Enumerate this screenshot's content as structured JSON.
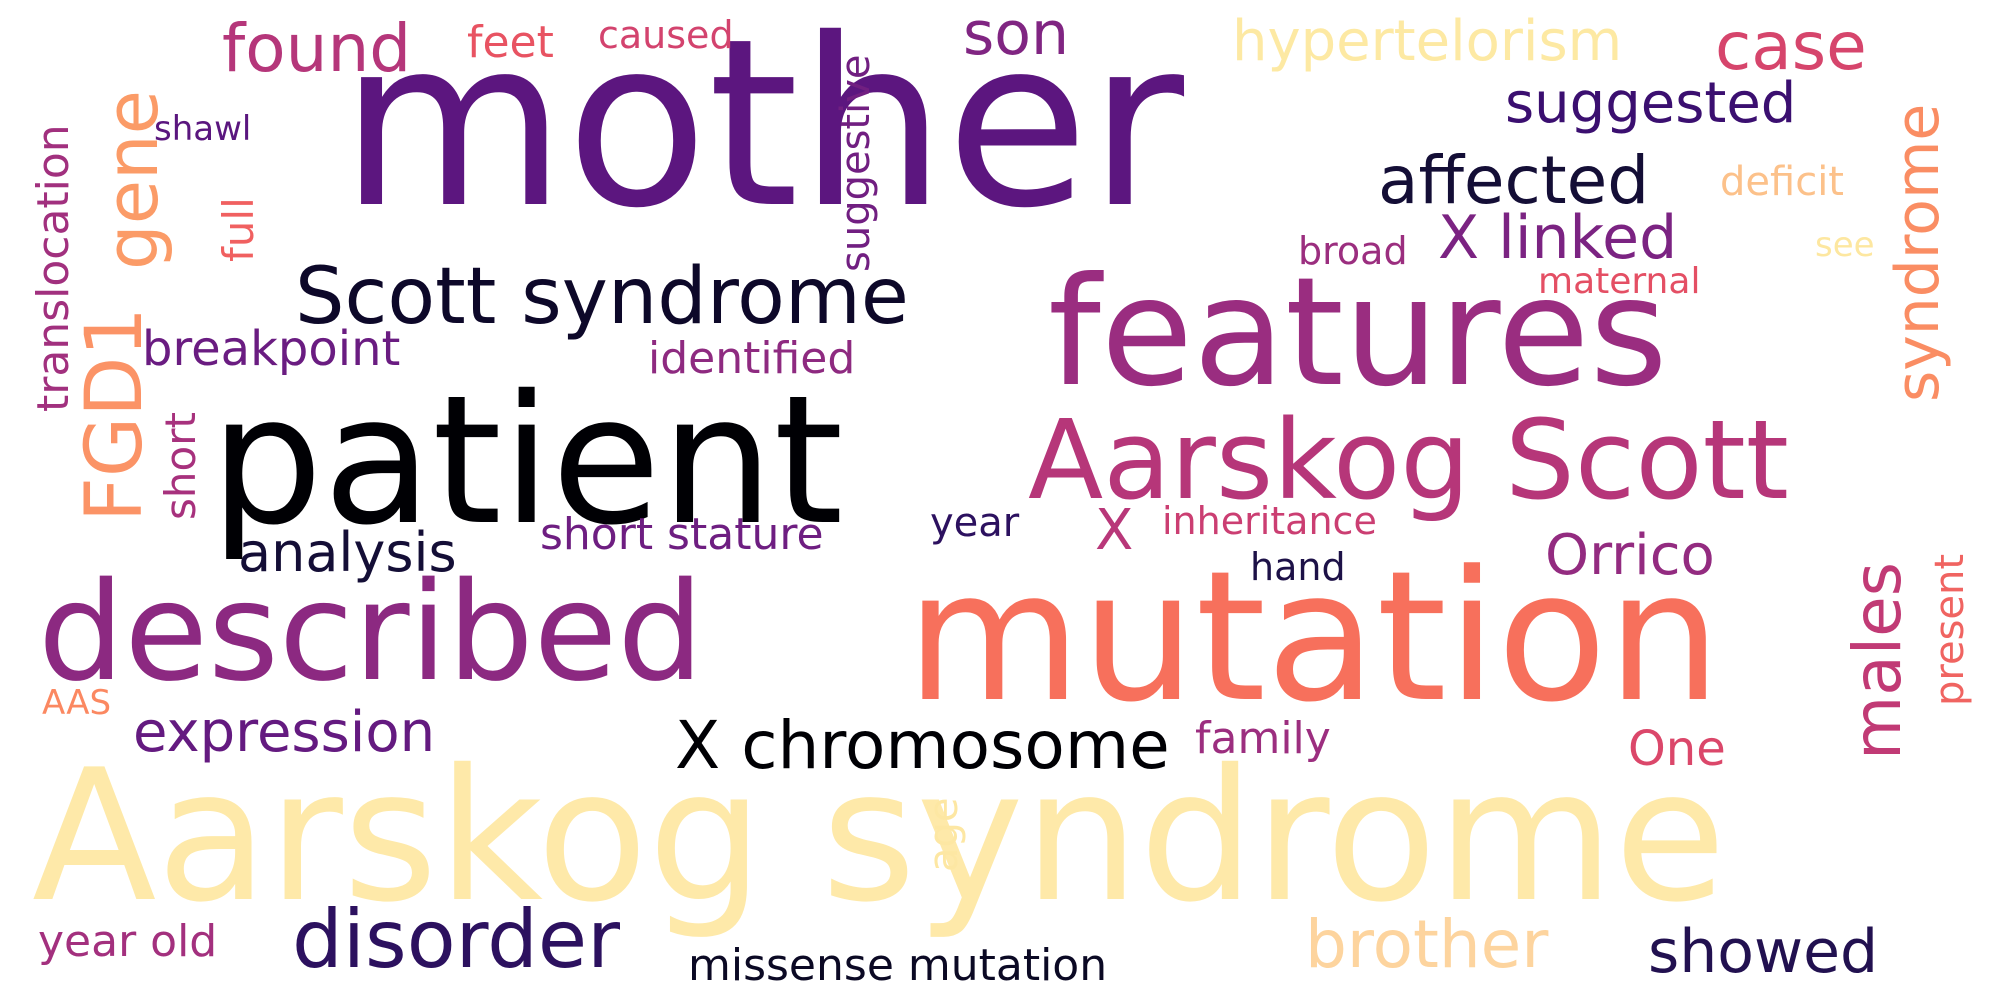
{
  "words": {
    "mother": {
      "text": "mother",
      "color": "#5c167f"
    },
    "features": {
      "text": "features",
      "color": "#9a2d80"
    },
    "patient": {
      "text": "patient",
      "color": "#000004"
    },
    "aarskog_scott": {
      "text": "Aarskog Scott",
      "color": "#b63679"
    },
    "described": {
      "text": "described",
      "color": "#8c2981"
    },
    "mutation": {
      "text": "mutation",
      "color": "#f7705c"
    },
    "aarskog_syndrome": {
      "text": "Aarskog syndrome",
      "color": "#fee9a9"
    },
    "scott_syndrome": {
      "text": "Scott syndrome",
      "color": "#0d0829"
    },
    "x_chromosome": {
      "text": "X chromosome",
      "color": "#000004"
    },
    "found": {
      "text": "found",
      "color": "#b5367a"
    },
    "feet": {
      "text": "feet",
      "color": "#e85362"
    },
    "caused": {
      "text": "caused",
      "color": "#d3436e"
    },
    "son": {
      "text": "son",
      "color": "#802582"
    },
    "hypertelorism": {
      "text": "hypertelorism",
      "color": "#fde9a3"
    },
    "case": {
      "text": "case",
      "color": "#d6456c"
    },
    "suggested": {
      "text": "suggested",
      "color": "#3b0f70"
    },
    "affected": {
      "text": "affected",
      "color": "#140e36"
    },
    "deficit": {
      "text": "deficit",
      "color": "#fcc18a"
    },
    "x_linked": {
      "text": "X linked",
      "color": "#7b2382"
    },
    "broad": {
      "text": "broad",
      "color": "#9b2e7f"
    },
    "see": {
      "text": "see",
      "color": "#fde7a0"
    },
    "maternal": {
      "text": "maternal",
      "color": "#e44f64"
    },
    "shawl": {
      "text": "shawl",
      "color": "#5a167e"
    },
    "breakpoint": {
      "text": "breakpoint",
      "color": "#6a1c81"
    },
    "identified": {
      "text": "identified",
      "color": "#8e2a80"
    },
    "analysis": {
      "text": "analysis",
      "color": "#140e36"
    },
    "short_stature": {
      "text": "short stature",
      "color": "#6e1e81"
    },
    "year": {
      "text": "year",
      "color": "#2c115f"
    },
    "x": {
      "text": "X",
      "color": "#b83779"
    },
    "inheritance": {
      "text": "inheritance",
      "color": "#cb3e72"
    },
    "hand": {
      "text": "hand",
      "color": "#1d1147"
    },
    "orrico": {
      "text": "Orrico",
      "color": "#932b80"
    },
    "aas": {
      "text": "AAS",
      "color": "#fb8861"
    },
    "expression": {
      "text": "expression",
      "color": "#641a80"
    },
    "family": {
      "text": "family",
      "color": "#9c2e7f"
    },
    "one": {
      "text": "One",
      "color": "#db476a"
    },
    "year_old": {
      "text": "year old",
      "color": "#a3307e"
    },
    "disorder": {
      "text": "disorder",
      "color": "#2c115f"
    },
    "missense_mutation": {
      "text": "missense mutation",
      "color": "#0b0924"
    },
    "brother": {
      "text": "brother",
      "color": "#fdd49e"
    },
    "showed": {
      "text": "showed",
      "color": "#221150"
    },
    "translocation": {
      "text": "translocation",
      "color": "#a1307e"
    },
    "gene": {
      "text": "gene",
      "color": "#fb9b67"
    },
    "fgd1": {
      "text": "FGD1",
      "color": "#fb9366"
    },
    "full": {
      "text": "full",
      "color": "#f06060"
    },
    "short": {
      "text": "short",
      "color": "#a7317d"
    },
    "suggestive": {
      "text": "suggestive",
      "color": "#711f81"
    },
    "age": {
      "text": "age",
      "color": "#fde7a3"
    },
    "syndrome": {
      "text": "syndrome",
      "color": "#fa8d63"
    },
    "males": {
      "text": "males",
      "color": "#c13a75"
    },
    "present": {
      "text": "present",
      "color": "#f06461"
    }
  }
}
